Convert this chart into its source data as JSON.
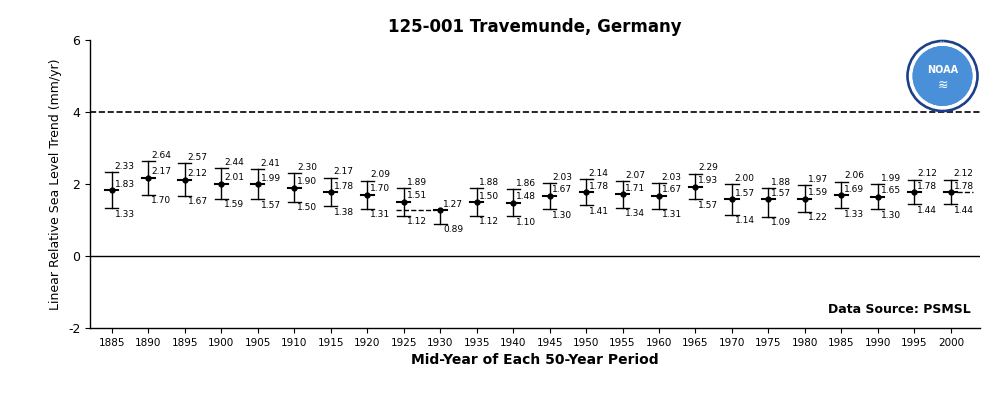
{
  "title": "125-001 Travemunde, Germany",
  "xlabel": "Mid-Year of Each 50-Year Period",
  "ylabel": "Linear Relative Sea Level Trend (mm/yr)",
  "years": [
    1885,
    1890,
    1895,
    1900,
    1905,
    1910,
    1915,
    1920,
    1925,
    1930,
    1935,
    1940,
    1945,
    1950,
    1955,
    1960,
    1965,
    1970,
    1975,
    1980,
    1985,
    1990,
    1995,
    2000
  ],
  "values": [
    1.83,
    2.17,
    2.12,
    2.01,
    1.99,
    1.9,
    1.78,
    1.7,
    1.51,
    1.27,
    1.5,
    1.48,
    1.67,
    1.78,
    1.71,
    1.67,
    1.93,
    1.57,
    1.57,
    1.59,
    1.69,
    1.65,
    1.78,
    1.78
  ],
  "upper": [
    2.33,
    2.64,
    2.57,
    2.44,
    2.41,
    2.3,
    2.17,
    2.09,
    1.89,
    null,
    1.88,
    1.86,
    2.03,
    2.14,
    2.07,
    2.03,
    2.29,
    2.0,
    1.88,
    1.97,
    2.06,
    1.99,
    2.12,
    2.12
  ],
  "lower": [
    1.33,
    1.7,
    1.67,
    1.59,
    1.57,
    1.5,
    1.38,
    1.31,
    1.12,
    0.89,
    1.12,
    1.1,
    1.3,
    1.41,
    1.34,
    1.31,
    1.57,
    1.14,
    1.09,
    1.22,
    1.33,
    1.3,
    1.44,
    1.44
  ],
  "dashed_line_y": 4.0,
  "ylim": [
    -2,
    6
  ],
  "xlim": [
    1882,
    2004
  ],
  "xticks": [
    1885,
    1890,
    1895,
    1900,
    1905,
    1910,
    1915,
    1920,
    1925,
    1930,
    1935,
    1940,
    1945,
    1950,
    1955,
    1960,
    1965,
    1970,
    1975,
    1980,
    1985,
    1990,
    1995,
    2000
  ],
  "yticks": [
    -2,
    0,
    2,
    4,
    6
  ],
  "data_source_text": "Data Source: PSMSL",
  "bg_color": "#ffffff",
  "point_color": "#000000",
  "error_color": "#000000"
}
